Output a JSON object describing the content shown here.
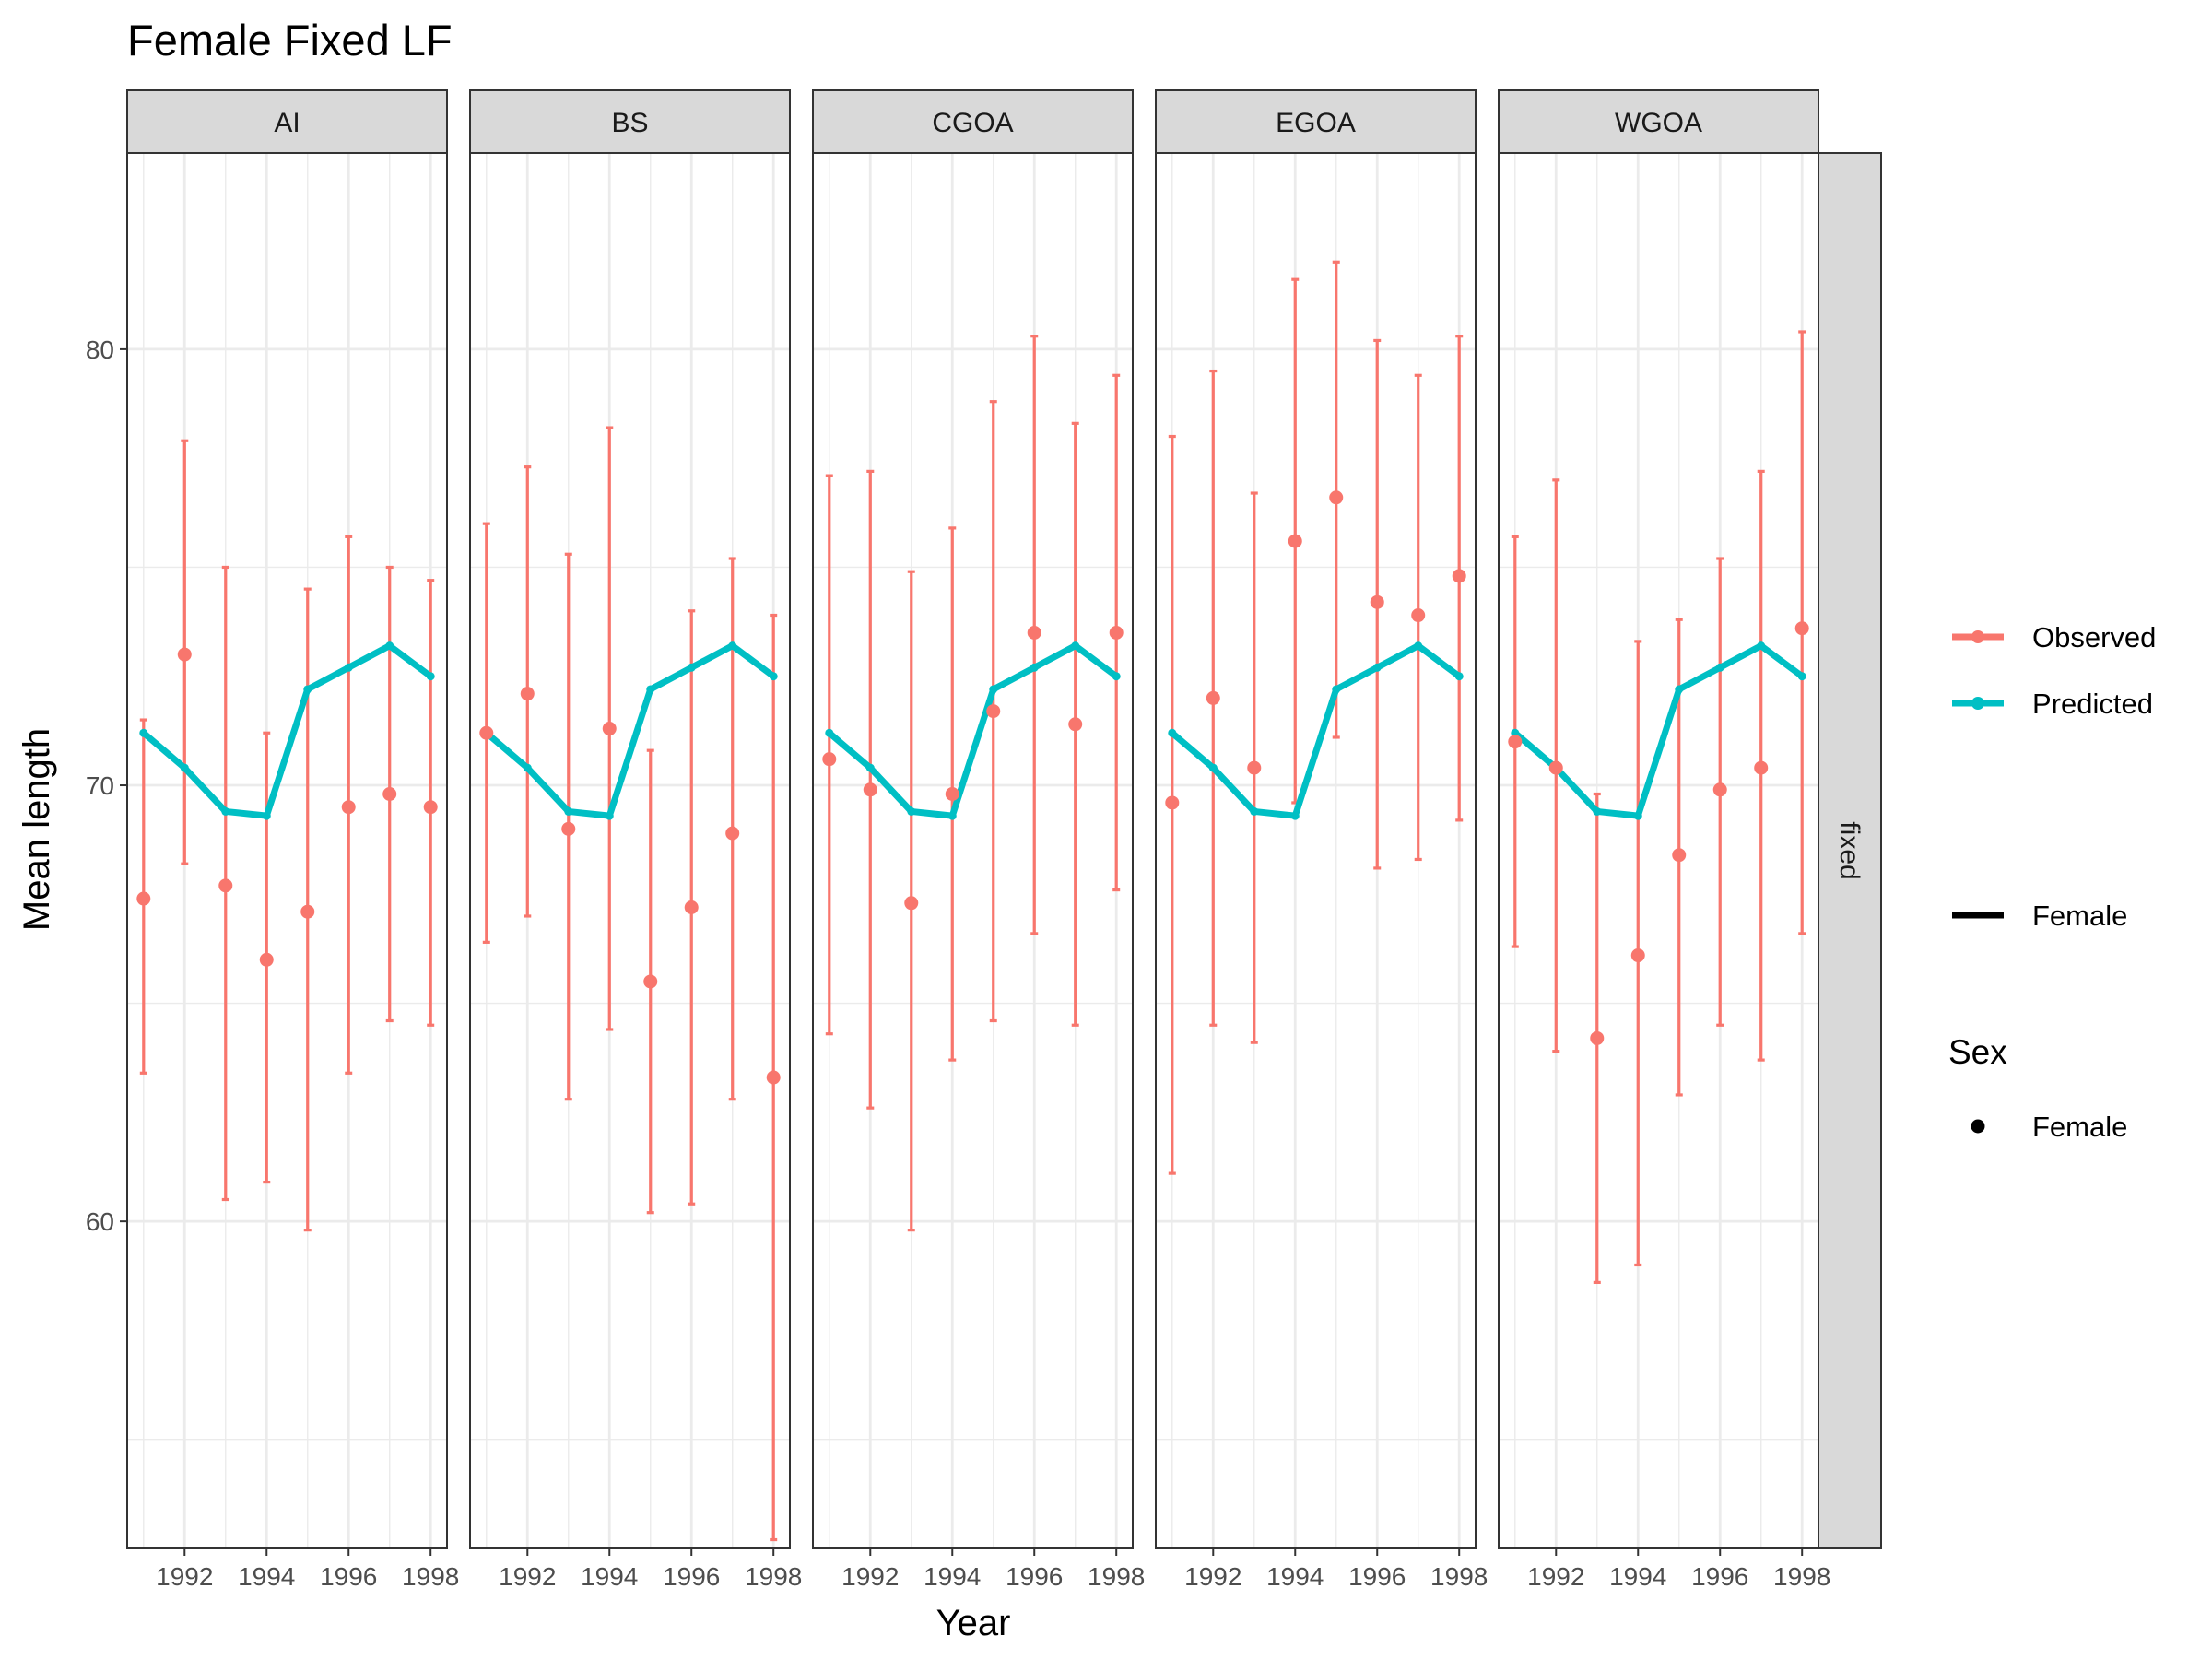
{
  "chart_data": {
    "type": "line",
    "title": "Female Fixed LF",
    "xlabel": "Year",
    "ylabel": "Mean length",
    "x_ticks": [
      1992,
      1994,
      1996,
      1998
    ],
    "y_ticks": [
      60,
      70,
      80
    ],
    "xlim": [
      1990.6,
      1998.4
    ],
    "ylim": [
      52.5,
      84.5
    ],
    "grid": true,
    "facet_label": "fixed",
    "x": [
      1991,
      1992,
      1993,
      1994,
      1995,
      1996,
      1997,
      1998
    ],
    "predicted": [
      71.2,
      70.4,
      69.4,
      69.3,
      72.2,
      72.7,
      73.2,
      72.5
    ],
    "panels": [
      {
        "name": "AI",
        "observed": [
          67.4,
          73.0,
          67.7,
          66.0,
          67.1,
          69.5,
          69.8,
          69.5
        ],
        "lower": [
          63.4,
          68.2,
          60.5,
          60.9,
          59.8,
          63.4,
          64.6,
          64.5
        ],
        "upper": [
          71.5,
          77.9,
          75.0,
          71.2,
          74.5,
          75.7,
          75.0,
          74.7
        ]
      },
      {
        "name": "BS",
        "observed": [
          71.2,
          72.1,
          69.0,
          71.3,
          65.5,
          67.2,
          68.9,
          63.3
        ],
        "lower": [
          66.4,
          67.0,
          62.8,
          64.4,
          60.2,
          60.4,
          62.8,
          52.7
        ],
        "upper": [
          76.0,
          77.3,
          75.3,
          78.2,
          70.8,
          74.0,
          75.2,
          73.9
        ]
      },
      {
        "name": "CGOA",
        "observed": [
          70.6,
          69.9,
          67.3,
          69.8,
          71.7,
          73.5,
          71.4,
          73.5
        ],
        "lower": [
          64.3,
          62.6,
          59.8,
          63.7,
          64.6,
          66.6,
          64.5,
          67.6
        ],
        "upper": [
          77.1,
          77.2,
          74.9,
          75.9,
          78.8,
          80.3,
          78.3,
          79.4
        ]
      },
      {
        "name": "EGOA",
        "observed": [
          69.6,
          72.0,
          70.4,
          75.6,
          76.6,
          74.2,
          73.9,
          74.8
        ],
        "lower": [
          61.1,
          64.5,
          64.1,
          69.6,
          71.1,
          68.1,
          68.3,
          69.2
        ],
        "upper": [
          78.0,
          79.5,
          76.7,
          81.6,
          82.0,
          80.2,
          79.4,
          80.3
        ]
      },
      {
        "name": "WGOA",
        "observed": [
          71.0,
          70.4,
          64.2,
          66.1,
          68.4,
          69.9,
          70.4,
          73.6
        ],
        "lower": [
          66.3,
          63.9,
          58.6,
          59.0,
          62.9,
          64.5,
          63.7,
          66.6
        ],
        "upper": [
          75.7,
          77.0,
          69.8,
          73.3,
          73.8,
          75.2,
          77.2,
          80.4
        ]
      }
    ],
    "legend": {
      "color_items": [
        "Observed",
        "Predicted"
      ],
      "linetype_items": [
        "Female"
      ],
      "shape_title": "Sex",
      "shape_items": [
        "Female"
      ],
      "placement": "right"
    },
    "colors": {
      "observed": "#F8766D",
      "predicted": "#00BFC4",
      "strip_fill": "#D9D9D9",
      "grid": "#EBEBEB",
      "border": "#333333"
    }
  }
}
